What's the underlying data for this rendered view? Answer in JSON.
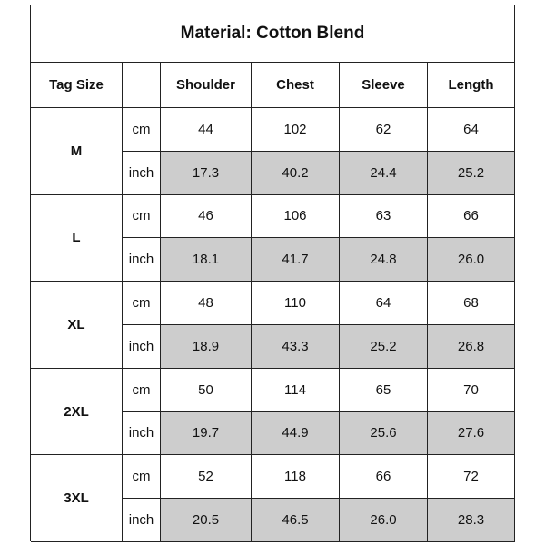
{
  "title": "Material: Cotton Blend",
  "header": {
    "tag_size": "Tag Size",
    "columns": [
      "Shoulder",
      "Chest",
      "Sleeve",
      "Length"
    ]
  },
  "rows": [
    {
      "size": "M",
      "cm": {
        "unit": "cm",
        "values": [
          "44",
          "102",
          "62",
          "64"
        ]
      },
      "inch": {
        "unit": "inch",
        "values": [
          "17.3",
          "40.2",
          "24.4",
          "25.2"
        ]
      }
    },
    {
      "size": "L",
      "cm": {
        "unit": "cm",
        "values": [
          "46",
          "106",
          "63",
          "66"
        ]
      },
      "inch": {
        "unit": "inch",
        "values": [
          "18.1",
          "41.7",
          "24.8",
          "26.0"
        ]
      }
    },
    {
      "size": "XL",
      "cm": {
        "unit": "cm",
        "values": [
          "48",
          "110",
          "64",
          "68"
        ]
      },
      "inch": {
        "unit": "inch",
        "values": [
          "18.9",
          "43.3",
          "25.2",
          "26.8"
        ]
      }
    },
    {
      "size": "2XL",
      "cm": {
        "unit": "cm",
        "values": [
          "50",
          "114",
          "65",
          "70"
        ]
      },
      "inch": {
        "unit": "inch",
        "values": [
          "19.7",
          "44.9",
          "25.6",
          "27.6"
        ]
      }
    },
    {
      "size": "3XL",
      "cm": {
        "unit": "cm",
        "values": [
          "52",
          "118",
          "66",
          "72"
        ]
      },
      "inch": {
        "unit": "inch",
        "values": [
          "20.5",
          "46.5",
          "26.0",
          "28.3"
        ]
      }
    }
  ]
}
